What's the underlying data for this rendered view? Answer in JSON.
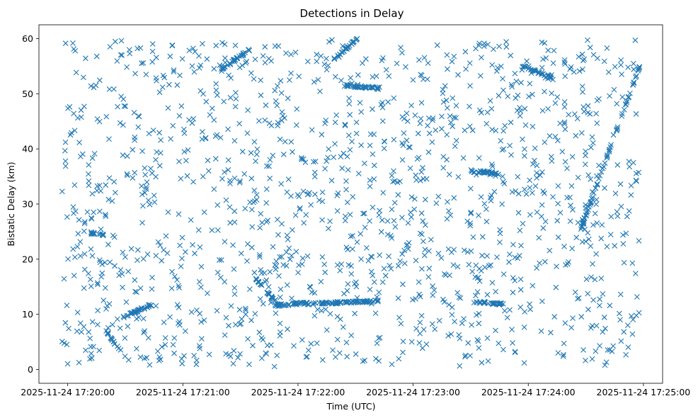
{
  "chart_data": {
    "type": "scatter",
    "title": "Detections in Delay",
    "xlabel": "Time (UTC)",
    "ylabel": "Bistatic Delay (km)",
    "marker": "x",
    "color": "#1f77b4",
    "grid": false,
    "legend": "none",
    "xlim": [
      "2025-11-24 17:19:45",
      "2025-11-24 17:25:10"
    ],
    "ylim": [
      -2.5,
      62.5
    ],
    "x_ticks": [
      "2025-11-24 17:20:00",
      "2025-11-24 17:21:00",
      "2025-11-24 17:22:00",
      "2025-11-24 17:23:00",
      "2025-11-24 17:24:00",
      "2025-11-24 17:25:00"
    ],
    "y_ticks": [
      0,
      10,
      20,
      30,
      40,
      50,
      60
    ],
    "time_range": [
      "2025-11-24 17:19:57",
      "2025-11-24 17:24:58"
    ],
    "delay_range": [
      0.5,
      60
    ],
    "approx_point_count": 1800,
    "background": "uniform noise detections across time and delay",
    "tracks": [
      {
        "start": "2025-11-24 17:22:05",
        "end": "2025-11-24 17:22:42",
        "delay_start": 11.9,
        "delay_end": 12.4,
        "note": "dense steady track"
      },
      {
        "start": "2025-11-24 17:21:48",
        "end": "2025-11-24 17:22:05",
        "delay_start": 11.6,
        "delay_end": 12.1,
        "note": "dense steady track"
      },
      {
        "start": "2025-11-24 17:23:32",
        "end": "2025-11-24 17:23:47",
        "delay_start": 12.3,
        "delay_end": 11.8,
        "note": "dense steady track"
      },
      {
        "start": "2025-11-24 17:20:12",
        "end": "2025-11-24 17:20:19",
        "delay_start": 24.8,
        "delay_end": 24.3,
        "note": "short track"
      },
      {
        "start": "2025-11-24 17:21:38",
        "end": "2025-11-24 17:21:50",
        "delay_start": 16.5,
        "delay_end": 11.6,
        "note": "descending track"
      },
      {
        "start": "2025-11-24 17:20:29",
        "end": "2025-11-24 17:20:44",
        "delay_start": 9.5,
        "delay_end": 11.8,
        "note": "rising track"
      },
      {
        "start": "2025-11-24 17:20:20",
        "end": "2025-11-24 17:20:27",
        "delay_start": 7.0,
        "delay_end": 3.5,
        "note": "descending track"
      },
      {
        "start": "2025-11-24 17:22:18",
        "end": "2025-11-24 17:22:31",
        "delay_start": 56.0,
        "delay_end": 60.0,
        "note": "rising track"
      },
      {
        "start": "2025-11-24 17:23:30",
        "end": "2025-11-24 17:23:45",
        "delay_start": 36.0,
        "delay_end": 35.5,
        "note": "track"
      },
      {
        "start": "2025-11-24 17:24:27",
        "end": "2025-11-24 17:24:58",
        "delay_start": 25.0,
        "delay_end": 55.0,
        "note": "rising arc"
      },
      {
        "start": "2025-11-24 17:22:24",
        "end": "2025-11-24 17:22:42",
        "delay_start": 51.5,
        "delay_end": 51.0,
        "note": "track"
      },
      {
        "start": "2025-11-24 17:23:57",
        "end": "2025-11-24 17:24:12",
        "delay_start": 55.0,
        "delay_end": 53.0,
        "note": "track"
      },
      {
        "start": "2025-11-24 17:21:20",
        "end": "2025-11-24 17:21:35",
        "delay_start": 54.5,
        "delay_end": 58.0,
        "note": "rising track"
      }
    ]
  }
}
